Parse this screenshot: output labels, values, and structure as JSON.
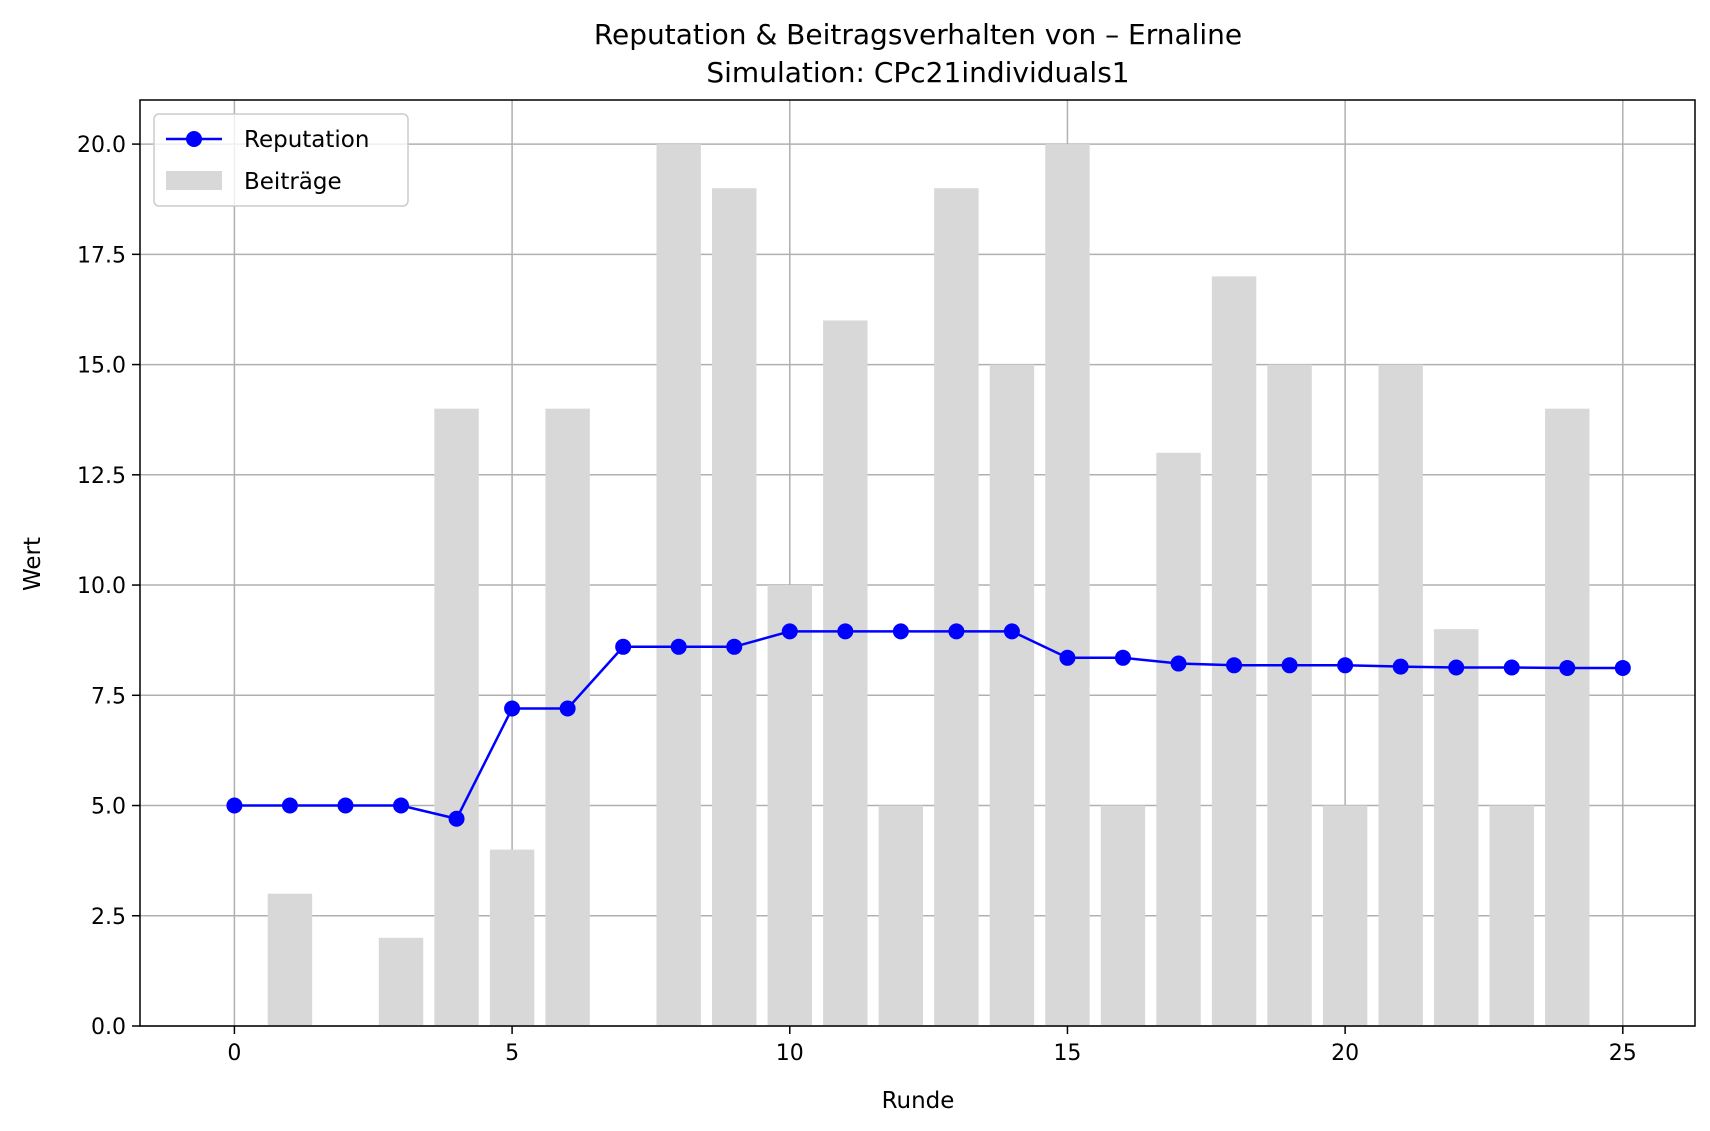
{
  "chart_data": {
    "type": "bar+line",
    "title": "Reputation & Beitragsverhalten von – Ernaline",
    "subtitle": "Simulation: CPc21individuals1",
    "xlabel": "Runde",
    "ylabel": "Wert",
    "xlim": [
      -1.7,
      26.3
    ],
    "ylim": [
      0,
      21
    ],
    "x_ticks": [
      0,
      5,
      10,
      15,
      20,
      25
    ],
    "y_ticks": [
      0.0,
      2.5,
      5.0,
      7.5,
      10.0,
      12.5,
      15.0,
      17.5,
      20.0
    ],
    "grid": true,
    "legend": {
      "placement": "top-left",
      "entries": [
        "Reputation",
        "Beiträge"
      ]
    },
    "colors": {
      "reputation": "#0000ff",
      "beitraege": "#d8d8d8"
    },
    "x": [
      0,
      1,
      2,
      3,
      4,
      5,
      6,
      7,
      8,
      9,
      10,
      11,
      12,
      13,
      14,
      15,
      16,
      17,
      18,
      19,
      20,
      21,
      22,
      23,
      24,
      25
    ],
    "series": [
      {
        "name": "Beiträge",
        "kind": "bar",
        "x": [
          0,
          1,
          2,
          3,
          4,
          5,
          6,
          7,
          8,
          9,
          10,
          11,
          12,
          13,
          14,
          15,
          16,
          17,
          18,
          19,
          20,
          21,
          22,
          23,
          24
        ],
        "values": [
          0,
          3,
          0,
          2,
          14,
          4,
          14,
          0,
          20,
          19,
          10,
          16,
          5,
          19,
          15,
          20,
          5,
          13,
          17,
          15,
          5,
          15,
          9,
          5,
          14
        ]
      },
      {
        "name": "Reputation",
        "kind": "line",
        "x": [
          0,
          1,
          2,
          3,
          4,
          5,
          6,
          7,
          8,
          9,
          10,
          11,
          12,
          13,
          14,
          15,
          16,
          17,
          18,
          19,
          20,
          21,
          22,
          23,
          24,
          25
        ],
        "values": [
          5.0,
          5.0,
          5.0,
          5.0,
          4.7,
          7.2,
          7.2,
          8.6,
          8.6,
          8.6,
          8.95,
          8.95,
          8.95,
          8.95,
          8.95,
          8.35,
          8.35,
          8.22,
          8.18,
          8.18,
          8.18,
          8.15,
          8.13,
          8.13,
          8.12,
          8.12
        ]
      }
    ]
  }
}
